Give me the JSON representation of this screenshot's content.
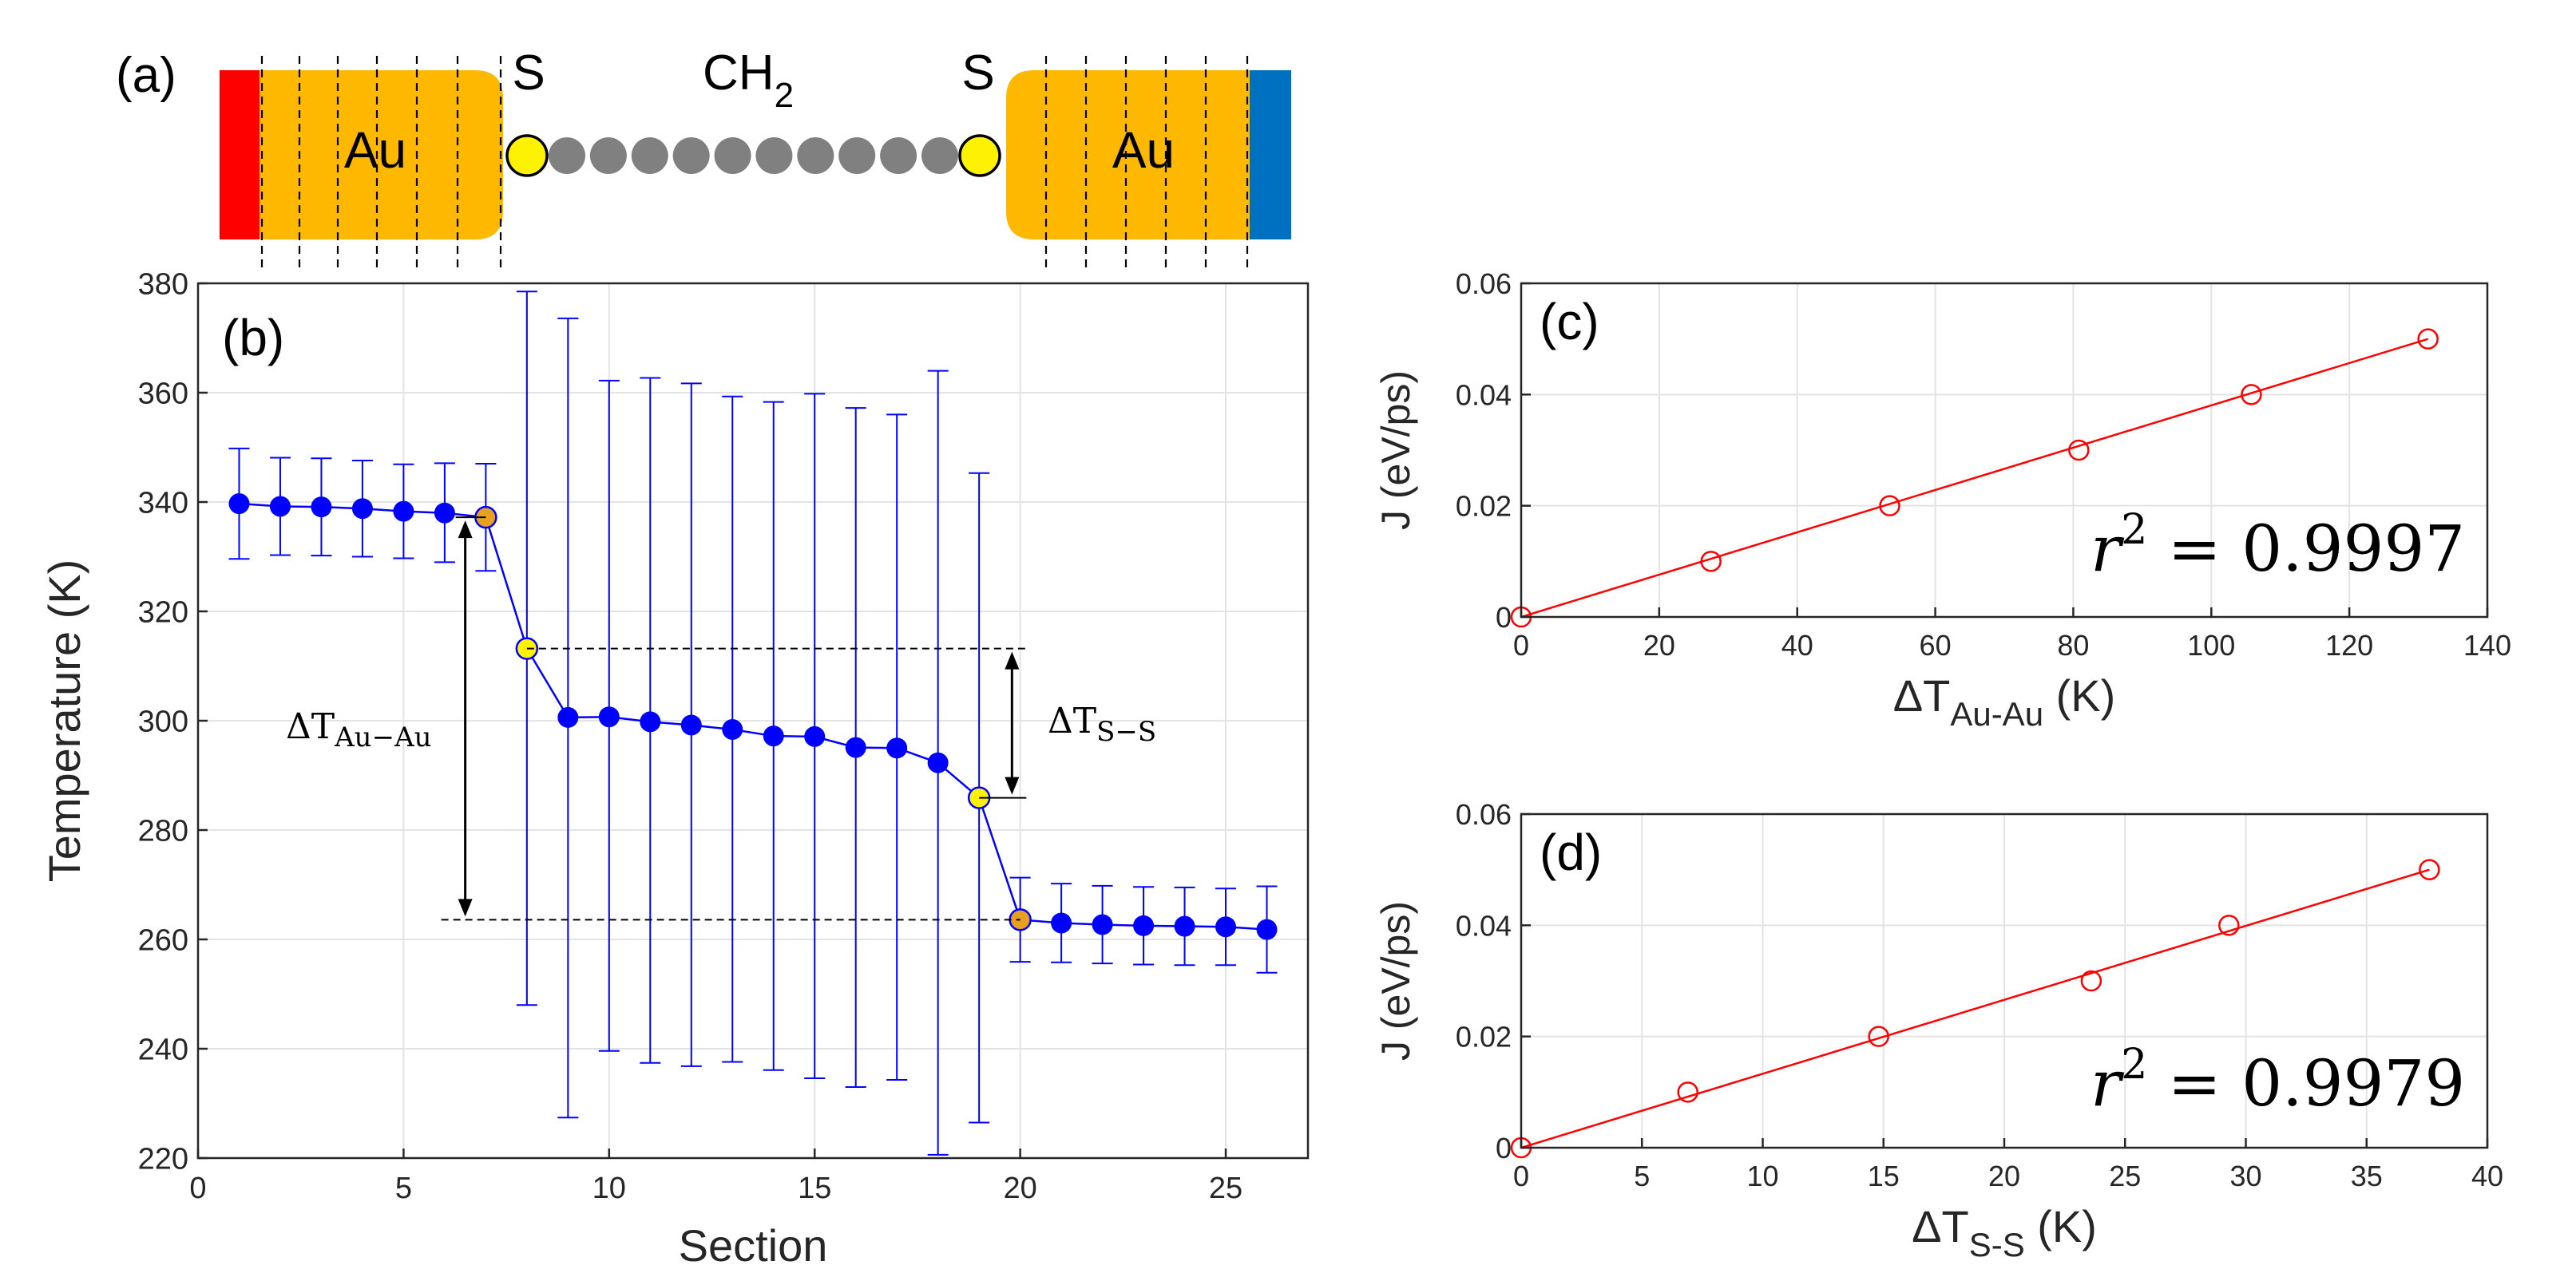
{
  "schematic": {
    "panel_label": "(a)",
    "left_block_label": "Au",
    "right_block_label": "Au",
    "left_sulfur_label": "S",
    "right_sulfur_label": "S",
    "chain_label_main": "CH",
    "chain_label_sub": "2",
    "chain_bead_count": 10,
    "colors": {
      "gold": "#FFB800",
      "hot_bath": "#FF0000",
      "cold_bath": "#0070C0",
      "sulfur": "#FFF200",
      "carbon": "#808080"
    }
  },
  "chart_data": [
    {
      "id": "b",
      "type": "scatter",
      "panel_label": "(b)",
      "xlabel": "Section",
      "ylabel": "Temperature (K)",
      "xlim": [
        0,
        27
      ],
      "ylim": [
        220,
        380
      ],
      "xticks": [
        0,
        5,
        10,
        15,
        20,
        25
      ],
      "yticks": [
        220,
        240,
        260,
        280,
        300,
        320,
        340,
        360,
        380
      ],
      "grid": true,
      "series": [
        {
          "x": [
            1,
            2,
            3,
            4,
            5,
            6,
            7,
            8,
            9,
            10,
            11,
            12,
            13,
            14,
            15,
            16,
            17,
            18,
            19,
            20,
            21,
            22,
            23,
            24,
            25,
            26
          ],
          "y": [
            339.7,
            339.2,
            339.1,
            338.8,
            338.3,
            338.0,
            337.2,
            313.2,
            300.6,
            300.7,
            299.8,
            299.2,
            298.4,
            297.2,
            297.1,
            295.1,
            295.0,
            292.3,
            285.9,
            263.6,
            263.0,
            262.7,
            262.5,
            262.4,
            262.3,
            261.8
          ],
          "yerr_upper": [
            349.8,
            348.1,
            348.0,
            347.6,
            346.9,
            347.1,
            347.0,
            378.5,
            373.6,
            362.2,
            362.7,
            361.7,
            359.3,
            358.3,
            359.8,
            357.2,
            356.0,
            364.0,
            345.3,
            271.3,
            270.2,
            269.8,
            269.6,
            269.5,
            269.3,
            269.7
          ],
          "yerr_lower": [
            329.6,
            330.3,
            330.2,
            330.0,
            329.7,
            329.0,
            327.4,
            248.0,
            227.4,
            239.6,
            237.4,
            236.8,
            237.6,
            236.1,
            234.6,
            233.0,
            234.3,
            220.6,
            226.5,
            255.9,
            255.8,
            255.6,
            255.4,
            255.3,
            255.3,
            253.9
          ],
          "marker_colors": {
            "gold_interface": "#E8A020",
            "sulfur": "#FFF200",
            "default": "#0000FF"
          },
          "gold_interface_x": [
            7,
            20
          ],
          "sulfur_x": [
            8,
            19
          ]
        }
      ],
      "annotations": [
        {
          "label_main": "ΔT",
          "label_sub": "Au−Au",
          "y_top": 337.2,
          "y_bottom": 263.6,
          "x": 6.5
        },
        {
          "label_main": "ΔT",
          "label_sub": "S−S",
          "y_top": 313.2,
          "y_bottom": 285.9,
          "x": 19.8
        }
      ]
    },
    {
      "id": "c",
      "type": "scatter",
      "panel_label": "(c)",
      "xlabel_main": "ΔT",
      "xlabel_sub": "Au-Au",
      "xlabel_unit": " (K)",
      "ylabel": "J (eV/ps)",
      "xlim": [
        0,
        140
      ],
      "ylim": [
        0,
        0.06
      ],
      "xticks": [
        0,
        20,
        40,
        60,
        80,
        100,
        120,
        140
      ],
      "yticks": [
        0,
        0.02,
        0.04,
        0.06
      ],
      "ytick_labels": [
        "0",
        "0.02",
        "0.04",
        "0.06"
      ],
      "grid": true,
      "x": [
        0,
        27.5,
        53.4,
        80.8,
        105.8,
        131.4
      ],
      "y": [
        0,
        0.01,
        0.02,
        0.03,
        0.04,
        0.05
      ],
      "fit_line": {
        "x": [
          0,
          131.4
        ],
        "y": [
          0,
          0.05
        ]
      },
      "r2_label": "r",
      "r2_exponent": "2",
      "r2_value": " = 0.9997",
      "color": "#FF0000"
    },
    {
      "id": "d",
      "type": "scatter",
      "panel_label": "(d)",
      "xlabel_main": "ΔT",
      "xlabel_sub": "S-S",
      "xlabel_unit": " (K)",
      "ylabel": "J (eV/ps)",
      "xlim": [
        0,
        40
      ],
      "ylim": [
        0,
        0.06
      ],
      "xticks": [
        0,
        5,
        10,
        15,
        20,
        25,
        30,
        35,
        40
      ],
      "yticks": [
        0,
        0.02,
        0.04,
        0.06
      ],
      "ytick_labels": [
        "0",
        "0.02",
        "0.04",
        "0.06"
      ],
      "grid": true,
      "x": [
        0,
        6.9,
        14.8,
        23.6,
        29.3,
        37.6
      ],
      "y": [
        0,
        0.01,
        0.02,
        0.03,
        0.04,
        0.05
      ],
      "fit_line": {
        "x": [
          0,
          37.6
        ],
        "y": [
          0,
          0.05
        ]
      },
      "r2_label": "r",
      "r2_exponent": "2",
      "r2_value": " = 0.9979",
      "color": "#FF0000"
    }
  ]
}
